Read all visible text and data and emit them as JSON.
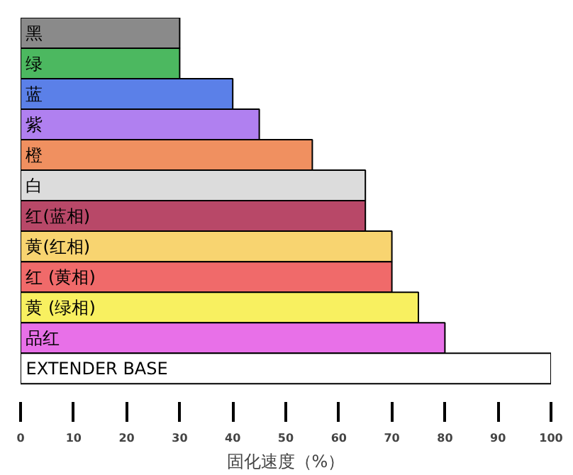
{
  "chart_data": {
    "type": "bar",
    "orientation": "horizontal",
    "xlabel": "固化速度（%）",
    "categories": [
      "黑",
      "绿",
      "蓝",
      "紫",
      "橙",
      "白",
      "红(蓝相)",
      "黄(红相)",
      "红 (黄相)",
      "黄 (绿相)",
      "品红",
      "EXTENDER BASE"
    ],
    "values": [
      30,
      30,
      40,
      45,
      55,
      65,
      65,
      70,
      70,
      75,
      80,
      100
    ],
    "colors": [
      "#8a8a8a",
      "#4cb860",
      "#5b80e8",
      "#b080f0",
      "#f09060",
      "#dcdcdc",
      "#b84868",
      "#f8d470",
      "#f06a6a",
      "#f8f060",
      "#e870e8",
      "#ffffff"
    ],
    "xlim": [
      0,
      100
    ],
    "xticks": [
      0,
      10,
      20,
      30,
      40,
      50,
      60,
      70,
      80,
      90,
      100
    ],
    "grid": false
  }
}
